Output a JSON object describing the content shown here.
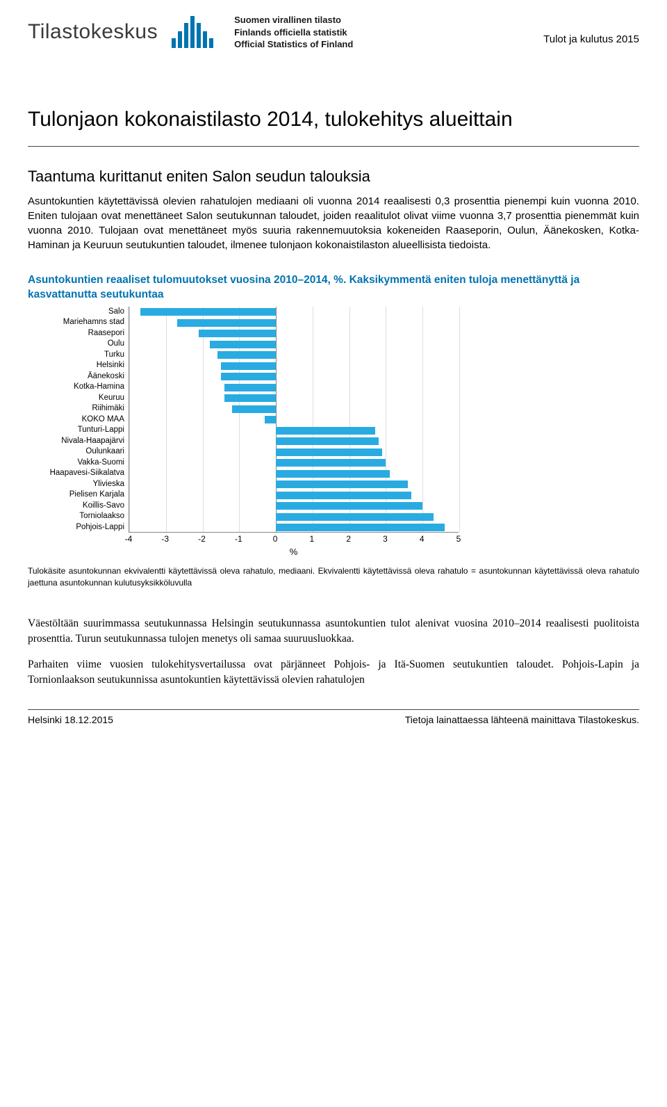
{
  "header": {
    "logo_text": "Tilastokeskus",
    "logo_bar_heights": [
      14,
      24,
      36,
      46,
      36,
      24,
      14
    ],
    "logo_bar_color": "#0073b0",
    "official_line1": "Suomen virallinen tilasto",
    "official_line2": "Finlands officiella statistik",
    "official_line3": "Official Statistics of Finland",
    "top_right": "Tulot ja kulutus 2015"
  },
  "title": "Tulonjaon kokonaistilasto 2014, tulokehitys alueittain",
  "subheading": "Taantuma kurittanut eniten Salon seudun talouksia",
  "paragraph1": "Asuntokuntien käytettävissä olevien rahatulojen mediaani oli vuonna 2014 reaalisesti 0,3 prosenttia pienempi kuin vuonna 2010. Eniten tulojaan ovat menettäneet Salon seutukunnan taloudet, joiden reaalitulot olivat viime vuonna 3,7 prosenttia pienemmät kuin vuonna 2010. Tulojaan ovat menettäneet myös suuria rakennemuutoksia kokeneiden Raaseporin, Oulun, Äänekosken, Kotka-Haminan ja Keuruun seutukuntien taloudet, ilmenee tulonjaon kokonaistilaston alueellisista tiedoista.",
  "chart": {
    "type": "bar-horizontal",
    "title": "Asuntokuntien reaaliset tulomuutokset vuosina 2010–2014, %. Kaksikymmentä eniten tuloja menettänyttä ja kasvattanutta seutukuntaa",
    "x_label": "%",
    "x_min": -4,
    "x_max": 5,
    "x_ticks": [
      -4,
      -3,
      -2,
      -1,
      0,
      1,
      2,
      3,
      4,
      5
    ],
    "bar_color": "#29abe2",
    "grid_color": "#dddddd",
    "label_fontsize": 11.5,
    "categories": [
      "Salo",
      "Mariehamns stad",
      "Raasepori",
      "Oulu",
      "Turku",
      "Helsinki",
      "Äänekoski",
      "Kotka-Hamina",
      "Keuruu",
      "Riihimäki",
      "KOKO MAA",
      "Tunturi-Lappi",
      "Nivala-Haapajärvi",
      "Oulunkaari",
      "Vakka-Suomi",
      "Haapavesi-Siikalatva",
      "Ylivieska",
      "Pielisen Karjala",
      "Koillis-Savo",
      "Torniolaakso",
      "Pohjois-Lappi"
    ],
    "values": [
      -3.7,
      -2.7,
      -2.1,
      -1.8,
      -1.6,
      -1.5,
      -1.5,
      -1.4,
      -1.4,
      -1.2,
      -0.3,
      2.7,
      2.8,
      2.9,
      3.0,
      3.1,
      3.6,
      3.7,
      4.0,
      4.3,
      4.6
    ]
  },
  "caption": "Tulokäsite asuntokunnan ekvivalentti käytettävissä oleva rahatulo, mediaani. Ekvivalentti käytettävissä oleva rahatulo = asuntokunnan käytettävissä oleva rahatulo jaettuna asuntokunnan kulutusyksikköluvulla",
  "serif_para1": "Väestöltään suurimmassa seutukunnassa Helsingin seutukunnassa asuntokuntien tulot alenivat vuosina 2010–2014 reaalisesti puolitoista prosenttia. Turun seutukunnassa tulojen menetys oli samaa suuruusluokkaa.",
  "serif_para2": "Parhaiten viime vuosien tulokehitysvertailussa ovat pärjänneet Pohjois- ja Itä-Suomen seutukuntien taloudet. Pohjois-Lapin ja Tornionlaakson seutukunnissa asuntokuntien käytettävissä olevien rahatulojen",
  "footer": {
    "left": "Helsinki 18.12.2015",
    "right": "Tietoja lainattaessa lähteenä mainittava Tilastokeskus."
  }
}
